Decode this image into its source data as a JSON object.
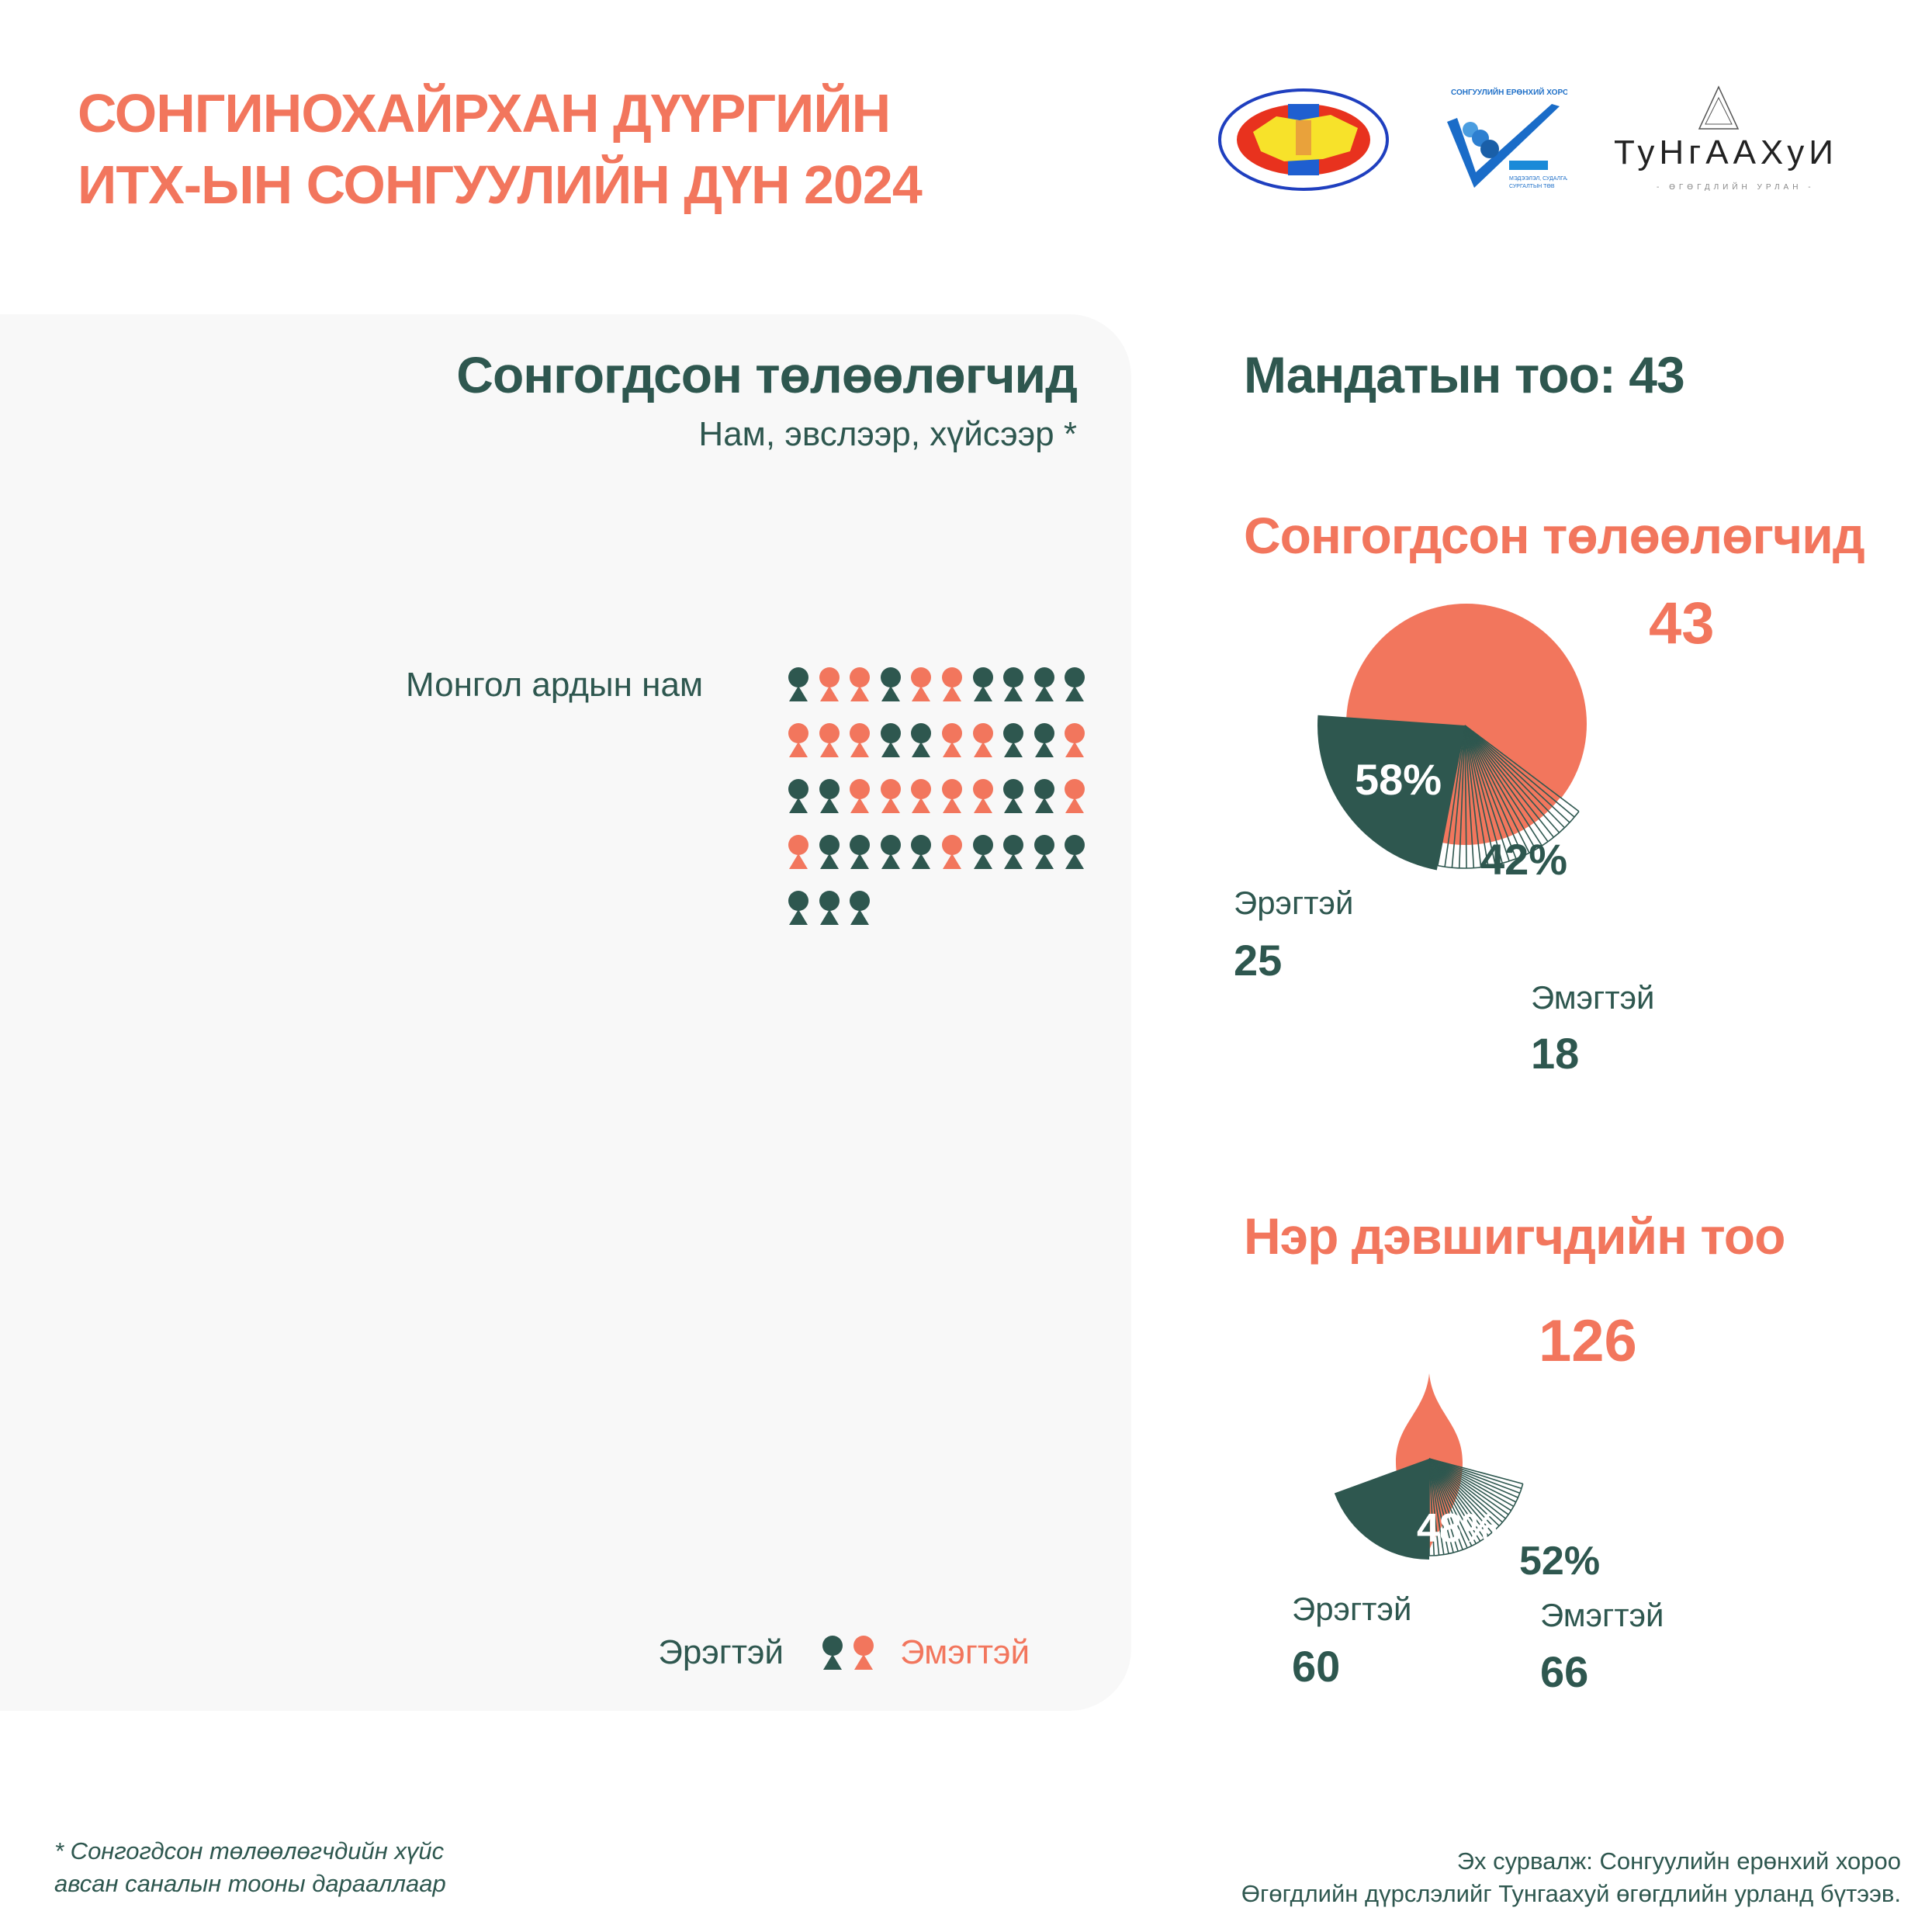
{
  "header": {
    "title_line1": "СОНГИНОХАЙРХАН ДҮҮРГИЙН",
    "title_line2": "ИТХ-ЫН СОНГУУЛИЙН ДҮН 2024"
  },
  "logos": {
    "gec_seal": "СОНГУУЛИЙН ЕРӨНХИЙ ХОРОО · GENERAL ELECTION COMMISSION OF MONGOLIA",
    "gec_center": "СОНГУУЛИЙН ЕРӨНХИЙ ХОРОО · МЭДЭЭЛЭЛ, СУДАЛГАА, СУРГАЛТЫН ТӨВ",
    "tungaakhui": "ТуНгААХуИ · ӨГӨГДЛИЙН УРЛАН"
  },
  "left_panel": {
    "title": "Сонгогдсон төлөөлөгчид",
    "subtitle": "Нам, эвслээр, хүйсээр *",
    "party": "Монгол ардын нам",
    "sequence": [
      "M",
      "F",
      "F",
      "M",
      "F",
      "F",
      "M",
      "M",
      "M",
      "M",
      "F",
      "F",
      "F",
      "M",
      "M",
      "F",
      "F",
      "M",
      "M",
      "F",
      "M",
      "M",
      "F",
      "F",
      "F",
      "F",
      "F",
      "M",
      "M",
      "F",
      "F",
      "M",
      "M",
      "M",
      "M",
      "F",
      "M",
      "M",
      "M",
      "M",
      "M",
      "M",
      "M"
    ],
    "legend_male": "Эрэгтэй",
    "legend_female": "Эмэгтэй"
  },
  "colors": {
    "male": "#2E574F",
    "female": "#F2765D",
    "panel": "#F8F8F8"
  },
  "mandates": {
    "label": "Мандатын тоо: 43"
  },
  "chart_data": [
    {
      "type": "pie",
      "title": "Сонгогдсон төлөөлөгчид",
      "total": "43",
      "categories": [
        "Эрэгтэй",
        "Эмэгтэй"
      ],
      "values": [
        25,
        18
      ],
      "percent_labels": [
        "58%",
        "42%"
      ],
      "value_labels": [
        "25",
        "18"
      ]
    },
    {
      "type": "pie",
      "title": "Нэр дэвшигчдийн тоо",
      "total": "126",
      "categories": [
        "Эрэгтэй",
        "Эмэгтэй"
      ],
      "values": [
        60,
        66
      ],
      "percent_labels": [
        "48%",
        "52%"
      ],
      "value_labels": [
        "60",
        "66"
      ]
    }
  ],
  "footer": {
    "note_line1": "* Сонгогдсон төлөөлөгчдийн хүйс",
    "note_line2": "авсан саналын тооны дарааллаар",
    "source_line1": "Эх сурвалж: Сонгуулийн ерөнхий хороо",
    "source_line2": "Өгөгдлийн дүрслэлийг Тунгаахуй өгөгдлийн урланд бүтээв."
  }
}
